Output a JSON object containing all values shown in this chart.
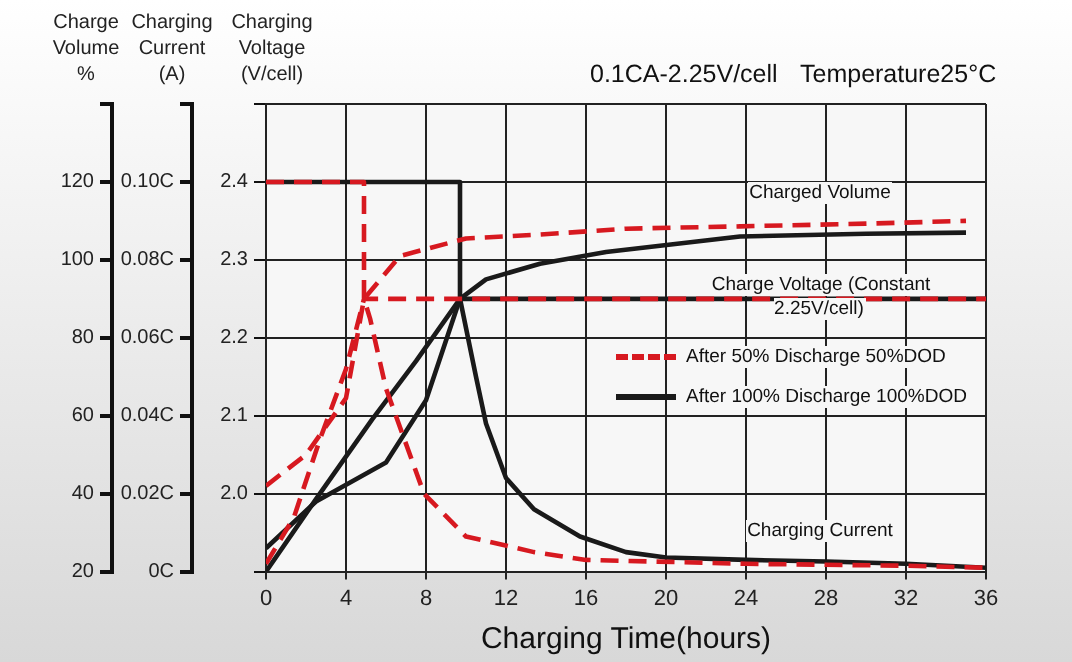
{
  "chart_data": {
    "type": "line",
    "title": "0.1CA-2.25V/cell",
    "subtitle": "Temperature25°C",
    "xlabel": "Charging Time(hours)",
    "ylabel": "Charging Voltage (V/cell)",
    "y2label": "Charging Current (A)",
    "y3label": "Charge Volume %",
    "xlim": [
      0,
      36
    ],
    "xticks": [
      0,
      4,
      8,
      12,
      16,
      20,
      24,
      28,
      32,
      36
    ],
    "ylim": [
      1.9,
      2.5
    ],
    "yticks": [
      {
        "value": 1.9,
        "label": null
      },
      {
        "value": 2,
        "label": "2.0"
      },
      2.1,
      2.2,
      2.3,
      2.4,
      {
        "value": 2.5,
        "label": null
      }
    ],
    "y2lim": [
      0,
      0.12
    ],
    "y2ticks": [
      {
        "value": 0,
        "label": "0C"
      },
      {
        "value": 0.02,
        "label": "0.02C"
      },
      {
        "value": 0.04,
        "label": "0.04C"
      },
      {
        "value": 0.06,
        "label": "0.06C"
      },
      {
        "value": 0.08,
        "label": "0.08C"
      },
      {
        "value": 0.1,
        "label": "0.10C"
      },
      {
        "value": 0.12,
        "label": null
      }
    ],
    "y3lim": [
      20,
      140
    ],
    "y3ticks": [
      20,
      40,
      60,
      80,
      100,
      120,
      {
        "value": 140,
        "label": null
      }
    ],
    "grid": true,
    "legend": "right",
    "marker": "none",
    "annotations": [
      "Charged Volume",
      "Charge Voltage (Constant 2.25V/cell)",
      "Charging Current"
    ],
    "series": [
      {
        "name": "After 50% Discharge 50%DOD",
        "color": "#d71920",
        "line_style": "dashed",
        "axis": "y3",
        "x": [
          0,
          2,
          4,
          4.9,
          6.7,
          10,
          13.7,
          18,
          23.7,
          30,
          35
        ],
        "values": [
          42,
          50,
          64.5,
          90,
          101,
          105.5,
          106.5,
          108,
          108.6,
          109.3,
          110
        ]
      },
      {
        "color": "#d71920",
        "line_style": "dashed",
        "axis": "y",
        "x": [
          0,
          1.4,
          2.7,
          4,
          4.9,
          36
        ],
        "values": [
          1.91,
          1.97,
          2.07,
          2.16,
          2.25,
          2.25
        ]
      },
      {
        "color": "#d71920",
        "line_style": "dashed",
        "axis": "y2",
        "x": [
          0,
          4.9,
          4.9,
          5.2,
          6,
          7.9,
          10,
          13.4,
          16,
          24,
          32,
          36
        ],
        "values": [
          0.1,
          0.1,
          0.07,
          0.065,
          0.047,
          0.02,
          0.009,
          0.005,
          0.003,
          0.002,
          0.0015,
          0.001
        ]
      },
      {
        "name": "After 100% Discharge 100%DOD",
        "color": "#1a1a1a",
        "line_style": "solid",
        "axis": "y3",
        "x": [
          0,
          2.5,
          5.3,
          7.5,
          9.7,
          11,
          13.7,
          17,
          23.7,
          30,
          35
        ],
        "values": [
          20,
          38.6,
          59,
          74,
          90,
          95,
          99,
          102,
          106,
          106.7,
          107
        ]
      },
      {
        "color": "#1a1a1a",
        "line_style": "solid",
        "axis": "y",
        "x": [
          0,
          2.5,
          6,
          8,
          9.7,
          36
        ],
        "values": [
          1.93,
          1.99,
          2.04,
          2.12,
          2.25,
          2.25
        ]
      },
      {
        "color": "#1a1a1a",
        "line_style": "solid",
        "axis": "y2",
        "x": [
          0,
          9.7,
          9.7,
          10.5,
          11,
          12,
          13.4,
          15.7,
          18,
          20,
          24,
          28,
          32,
          36
        ],
        "values": [
          0.1,
          0.1,
          0.07,
          0.05,
          0.038,
          0.024,
          0.016,
          0.009,
          0.005,
          0.0036,
          0.003,
          0.0026,
          0.002,
          0.001
        ]
      }
    ]
  }
}
